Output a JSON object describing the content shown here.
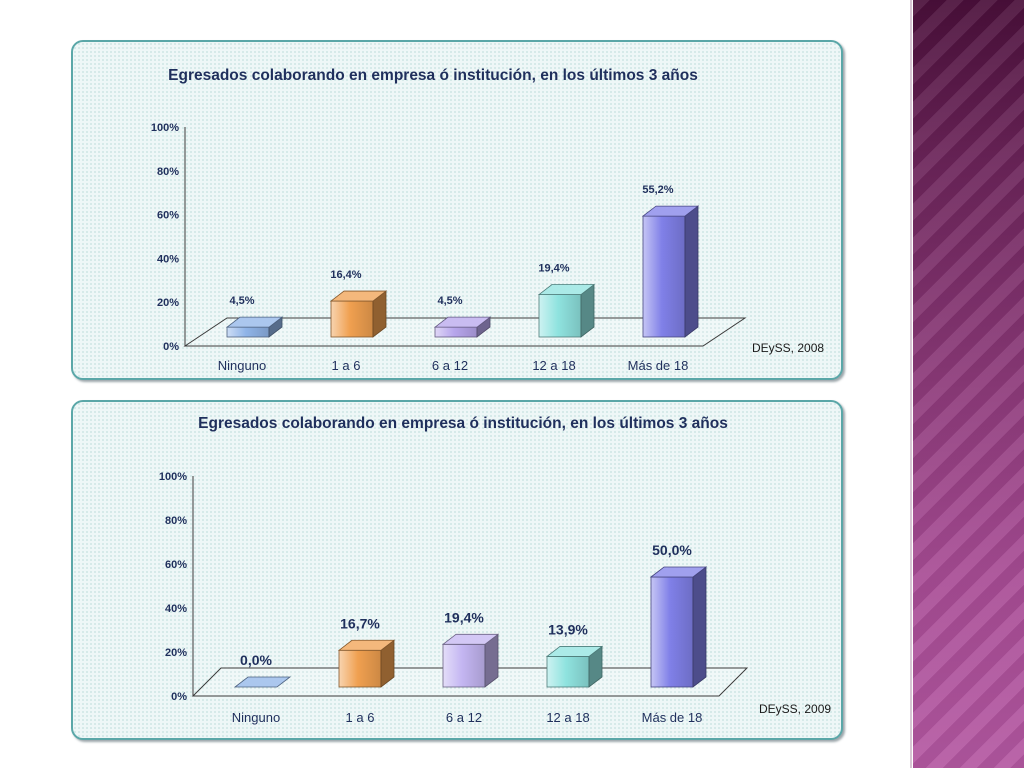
{
  "chart_data": [
    {
      "type": "bar",
      "title": "Egresados colaborando en empresa ó institución, en los últimos 3 años",
      "source": "DEySS, 2008",
      "categories": [
        "Ninguno",
        "1 a 6",
        "6 a 12",
        "12 a 18",
        "Más de 18"
      ],
      "values": [
        4.5,
        16.4,
        4.5,
        19.4,
        55.2
      ],
      "data_labels": [
        "4,5%",
        "16,4%",
        "4,5%",
        "19,4%",
        "55,2%"
      ],
      "ytick_labels": [
        "0%",
        "20%",
        "40%",
        "60%",
        "80%",
        "100%"
      ],
      "ylim": [
        0,
        100
      ],
      "colors": [
        "#8fb4e8",
        "#f0a050",
        "#b7a6ec",
        "#8fe3df",
        "#8080e8"
      ],
      "legend": "none",
      "grid": false
    },
    {
      "type": "bar",
      "title": "Egresados colaborando en empresa ó institución, en los últimos 3 años",
      "source": "DEySS, 2009",
      "categories": [
        "Ninguno",
        "1 a 6",
        "6 a 12",
        "12 a 18",
        "Más de 18"
      ],
      "values": [
        0.0,
        16.7,
        19.4,
        13.9,
        50.0
      ],
      "data_labels": [
        "0,0%",
        "16,7%",
        "19,4%",
        "13,9%",
        "50,0%"
      ],
      "ytick_labels": [
        "0%",
        "20%",
        "40%",
        "60%",
        "80%",
        "100%"
      ],
      "ylim": [
        0,
        100
      ],
      "colors": [
        "#8fb4e8",
        "#f0a050",
        "#c4b6f2",
        "#8fe3df",
        "#8080e8"
      ],
      "legend": "none",
      "grid": false
    }
  ]
}
